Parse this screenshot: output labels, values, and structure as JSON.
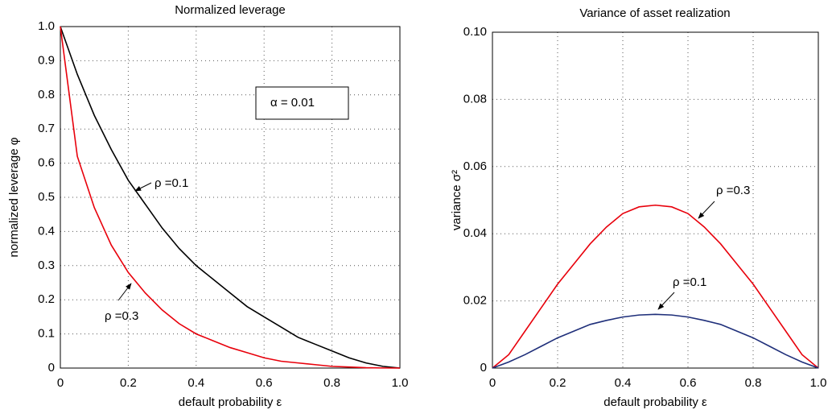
{
  "chart_data": [
    {
      "type": "line",
      "title": "Normalized leverage",
      "xlabel": "default probability    ε",
      "ylabel": "normalized leverage    φ",
      "x": [
        0,
        0.05,
        0.1,
        0.15,
        0.2,
        0.25,
        0.3,
        0.35,
        0.4,
        0.45,
        0.5,
        0.55,
        0.6,
        0.65,
        0.7,
        0.75,
        0.8,
        0.85,
        0.9,
        0.95,
        1
      ],
      "series": [
        {
          "name": "ρ =0.1",
          "color": "#000000",
          "values": [
            1,
            0.86,
            0.74,
            0.64,
            0.55,
            0.48,
            0.41,
            0.35,
            0.3,
            0.26,
            0.22,
            0.18,
            0.15,
            0.12,
            0.09,
            0.07,
            0.05,
            0.03,
            0.015,
            0.005,
            0
          ]
        },
        {
          "name": "ρ =0.3",
          "color": "#e8000b",
          "values": [
            1,
            0.62,
            0.47,
            0.36,
            0.28,
            0.22,
            0.17,
            0.13,
            0.1,
            0.08,
            0.06,
            0.045,
            0.03,
            0.02,
            0.015,
            0.01,
            0.005,
            0.003,
            0.001,
            0.0003,
            0
          ]
        }
      ],
      "annotations": [
        "α = 0.01"
      ],
      "xlim": [
        0,
        1
      ],
      "xticks": [
        0,
        0.2,
        0.4,
        0.6,
        0.8,
        {
          "value": 1,
          "label": "1.0"
        }
      ],
      "ylim": [
        0,
        1
      ],
      "yticks": [
        0,
        0.1,
        0.2,
        0.3,
        0.4,
        0.5,
        0.6,
        0.7,
        0.8,
        0.9,
        {
          "value": 1,
          "label": "1.0"
        }
      ],
      "grid": true
    },
    {
      "type": "line",
      "title": "Variance of asset realization",
      "xlabel": "default probability    ε",
      "ylabel": "variance   σ²",
      "x": [
        0,
        0.05,
        0.1,
        0.15,
        0.2,
        0.25,
        0.3,
        0.35,
        0.4,
        0.45,
        0.5,
        0.55,
        0.6,
        0.65,
        0.7,
        0.75,
        0.8,
        0.85,
        0.9,
        0.95,
        1
      ],
      "series": [
        {
          "name": "ρ =0.3",
          "color": "#e8000b",
          "values": [
            0,
            0.004,
            0.011,
            0.018,
            0.025,
            0.031,
            0.037,
            0.042,
            0.046,
            0.048,
            0.0485,
            0.048,
            0.046,
            0.042,
            0.037,
            0.031,
            0.025,
            0.018,
            0.011,
            0.004,
            0
          ]
        },
        {
          "name": "ρ =0.1",
          "color": "#1f2f7a",
          "values": [
            0,
            0.0018,
            0.004,
            0.0065,
            0.009,
            0.011,
            0.013,
            0.0142,
            0.0152,
            0.0158,
            0.016,
            0.0158,
            0.0152,
            0.0142,
            0.013,
            0.011,
            0.009,
            0.0065,
            0.004,
            0.0018,
            0
          ]
        }
      ],
      "xlim": [
        0,
        1
      ],
      "xticks": [
        0,
        0.2,
        0.4,
        0.6,
        0.8,
        {
          "value": 1,
          "label": "1.0"
        }
      ],
      "ylim": [
        0,
        0.1
      ],
      "yticks": [
        0,
        0.02,
        0.04,
        0.06,
        0.08,
        {
          "value": 0.1,
          "label": "0.10"
        }
      ],
      "grid": true
    }
  ]
}
